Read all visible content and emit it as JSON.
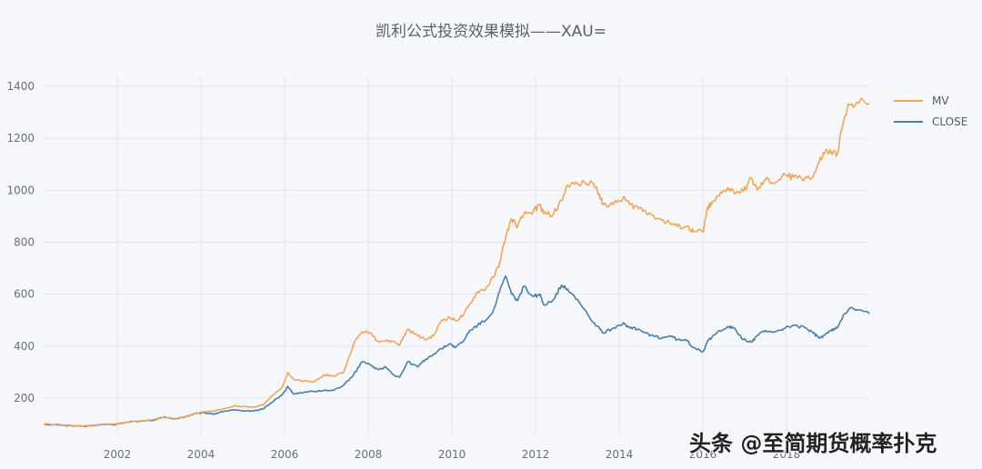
{
  "chart_data": {
    "type": "line",
    "title": "凯利公式投资效果模拟——XAU=",
    "xlabel": "",
    "ylabel": "",
    "xlim": [
      2000.24,
      2019.98
    ],
    "ylim": [
      50,
      1420
    ],
    "y_ticks": [
      200,
      400,
      600,
      800,
      1000,
      1200,
      1400
    ],
    "x_ticks": [
      2002,
      2004,
      2006,
      2008,
      2010,
      2012,
      2014,
      2016,
      2018
    ],
    "grid": true,
    "legend_position": "right-top",
    "series": [
      {
        "name": "MV",
        "color": "#f0a65a",
        "points": [
          [
            2000.24,
            100
          ],
          [
            2000.5,
            98
          ],
          [
            2000.75,
            96
          ],
          [
            2001.0,
            94
          ],
          [
            2001.25,
            93
          ],
          [
            2001.5,
            95
          ],
          [
            2001.75,
            97
          ],
          [
            2002.0,
            100
          ],
          [
            2002.25,
            105
          ],
          [
            2002.5,
            110
          ],
          [
            2002.75,
            113
          ],
          [
            2003.0,
            118
          ],
          [
            2003.25,
            125
          ],
          [
            2003.5,
            122
          ],
          [
            2003.75,
            128
          ],
          [
            2004.0,
            140
          ],
          [
            2004.25,
            148
          ],
          [
            2004.5,
            150
          ],
          [
            2004.75,
            158
          ],
          [
            2005.0,
            170
          ],
          [
            2005.25,
            168
          ],
          [
            2005.5,
            165
          ],
          [
            2005.75,
            175
          ],
          [
            2006.0,
            215
          ],
          [
            2006.2,
            240
          ],
          [
            2006.35,
            298
          ],
          [
            2006.5,
            270
          ],
          [
            2006.75,
            265
          ],
          [
            2007.0,
            262
          ],
          [
            2007.25,
            290
          ],
          [
            2007.5,
            285
          ],
          [
            2007.75,
            300
          ],
          [
            2008.0,
            410
          ],
          [
            2008.2,
            455
          ],
          [
            2008.45,
            448
          ],
          [
            2008.6,
            420
          ],
          [
            2008.8,
            420
          ],
          [
            2009.0,
            418
          ],
          [
            2009.15,
            405
          ],
          [
            2009.35,
            465
          ],
          [
            2009.6,
            440
          ],
          [
            2009.8,
            425
          ],
          [
            2010.0,
            440
          ],
          [
            2010.2,
            500
          ],
          [
            2010.4,
            510
          ],
          [
            2010.55,
            498
          ],
          [
            2010.75,
            520
          ],
          [
            2010.9,
            560
          ],
          [
            2011.1,
            610
          ],
          [
            2011.3,
            620
          ],
          [
            2011.5,
            665
          ],
          [
            2011.65,
            720
          ],
          [
            2011.8,
            820
          ],
          [
            2011.95,
            890
          ],
          [
            2012.1,
            860
          ],
          [
            2012.25,
            905
          ],
          [
            2012.5,
            920
          ],
          [
            2012.65,
            945
          ],
          [
            2012.75,
            910
          ],
          [
            2013.0,
            910
          ],
          [
            2013.2,
            960
          ],
          [
            2013.35,
            1020
          ],
          [
            2013.6,
            1025
          ],
          [
            2014.0,
            1025
          ],
          [
            2014.15,
            985
          ],
          [
            2014.25,
            945
          ],
          [
            2014.5,
            945
          ],
          [
            2014.75,
            975
          ],
          [
            2014.9,
            945
          ],
          [
            2015.1,
            935
          ],
          [
            2015.3,
            920
          ],
          [
            2015.5,
            905
          ],
          [
            2015.7,
            885
          ],
          [
            2015.9,
            875
          ],
          [
            2016.1,
            860
          ],
          [
            2016.35,
            860
          ],
          [
            2016.5,
            840
          ],
          [
            2016.75,
            840
          ],
          [
            2016.85,
            935
          ],
          [
            2016.95,
            945
          ],
          [
            2017.15,
            980
          ],
          [
            2017.35,
            1010
          ],
          [
            2017.5,
            995
          ],
          [
            2017.75,
            995
          ],
          [
            2017.95,
            1045
          ],
          [
            2018.1,
            1000
          ],
          [
            2018.3,
            1040
          ],
          [
            2018.55,
            1030
          ],
          [
            2018.8,
            1060
          ],
          [
            2019.0,
            1050
          ],
          [
            2019.3,
            1050
          ],
          [
            2019.5,
            1055
          ],
          [
            2019.65,
            1110
          ],
          [
            2019.8,
            1150
          ],
          [
            2019.95,
            1145
          ],
          [
            2020.1,
            1140
          ],
          [
            2020.25,
            1260
          ],
          [
            2020.4,
            1330
          ],
          [
            2020.6,
            1340
          ],
          [
            2020.9,
            1335
          ]
        ]
      },
      {
        "name": "CLOSE",
        "color": "#4a7fa8",
        "points": [
          [
            2000.24,
            100
          ],
          [
            2000.5,
            97
          ],
          [
            2000.75,
            95
          ],
          [
            2001.0,
            93
          ],
          [
            2001.25,
            92
          ],
          [
            2001.5,
            94
          ],
          [
            2001.75,
            99
          ],
          [
            2002.0,
            98
          ],
          [
            2002.25,
            104
          ],
          [
            2002.5,
            110
          ],
          [
            2002.75,
            112
          ],
          [
            2003.0,
            115
          ],
          [
            2003.25,
            128
          ],
          [
            2003.5,
            120
          ],
          [
            2003.75,
            126
          ],
          [
            2004.0,
            140
          ],
          [
            2004.25,
            145
          ],
          [
            2004.5,
            138
          ],
          [
            2004.75,
            148
          ],
          [
            2005.0,
            155
          ],
          [
            2005.25,
            150
          ],
          [
            2005.5,
            150
          ],
          [
            2005.75,
            160
          ],
          [
            2006.0,
            190
          ],
          [
            2006.2,
            210
          ],
          [
            2006.35,
            245
          ],
          [
            2006.5,
            215
          ],
          [
            2006.75,
            222
          ],
          [
            2007.0,
            225
          ],
          [
            2007.25,
            230
          ],
          [
            2007.5,
            230
          ],
          [
            2007.75,
            250
          ],
          [
            2008.0,
            290
          ],
          [
            2008.2,
            340
          ],
          [
            2008.45,
            325
          ],
          [
            2008.6,
            310
          ],
          [
            2008.8,
            320
          ],
          [
            2009.0,
            290
          ],
          [
            2009.15,
            280
          ],
          [
            2009.35,
            340
          ],
          [
            2009.6,
            320
          ],
          [
            2009.8,
            350
          ],
          [
            2010.0,
            370
          ],
          [
            2010.2,
            390
          ],
          [
            2010.4,
            410
          ],
          [
            2010.55,
            395
          ],
          [
            2010.75,
            420
          ],
          [
            2010.9,
            460
          ],
          [
            2011.1,
            480
          ],
          [
            2011.3,
            500
          ],
          [
            2011.5,
            540
          ],
          [
            2011.65,
            610
          ],
          [
            2011.8,
            670
          ],
          [
            2011.95,
            600
          ],
          [
            2012.1,
            575
          ],
          [
            2012.25,
            630
          ],
          [
            2012.5,
            590
          ],
          [
            2012.65,
            600
          ],
          [
            2012.75,
            560
          ],
          [
            2013.0,
            580
          ],
          [
            2013.2,
            635
          ],
          [
            2013.35,
            620
          ],
          [
            2013.6,
            580
          ],
          [
            2014.0,
            490
          ],
          [
            2014.15,
            470
          ],
          [
            2014.25,
            450
          ],
          [
            2014.5,
            470
          ],
          [
            2014.75,
            490
          ],
          [
            2014.9,
            470
          ],
          [
            2015.1,
            465
          ],
          [
            2015.3,
            450
          ],
          [
            2015.5,
            440
          ],
          [
            2015.7,
            430
          ],
          [
            2015.9,
            440
          ],
          [
            2016.1,
            425
          ],
          [
            2016.35,
            420
          ],
          [
            2016.5,
            395
          ],
          [
            2016.75,
            380
          ],
          [
            2016.85,
            420
          ],
          [
            2016.95,
            430
          ],
          [
            2017.15,
            460
          ],
          [
            2017.35,
            475
          ],
          [
            2017.5,
            470
          ],
          [
            2017.75,
            425
          ],
          [
            2017.95,
            415
          ],
          [
            2018.1,
            440
          ],
          [
            2018.3,
            460
          ],
          [
            2018.55,
            455
          ],
          [
            2018.8,
            470
          ],
          [
            2019.0,
            480
          ],
          [
            2019.3,
            470
          ],
          [
            2019.5,
            450
          ],
          [
            2019.65,
            430
          ],
          [
            2019.8,
            445
          ],
          [
            2019.95,
            460
          ],
          [
            2020.1,
            470
          ],
          [
            2020.25,
            520
          ],
          [
            2020.4,
            545
          ],
          [
            2020.6,
            540
          ],
          [
            2020.9,
            525
          ]
        ]
      }
    ]
  },
  "chart": {
    "title": "凯利公式投资效果模拟——XAU=",
    "legend": [
      {
        "label": "MV",
        "color": "#f0a65a"
      },
      {
        "label": "CLOSE",
        "color": "#4a7fa8"
      }
    ],
    "y_tick_labels": [
      "1400",
      "1200",
      "1000",
      "800",
      "600",
      "400",
      "200"
    ],
    "x_tick_labels": [
      "2002",
      "2004",
      "2006",
      "2008",
      "2010",
      "2012",
      "2014",
      "2016",
      "2018"
    ]
  },
  "watermark": "头条 @至简期货概率扑克"
}
